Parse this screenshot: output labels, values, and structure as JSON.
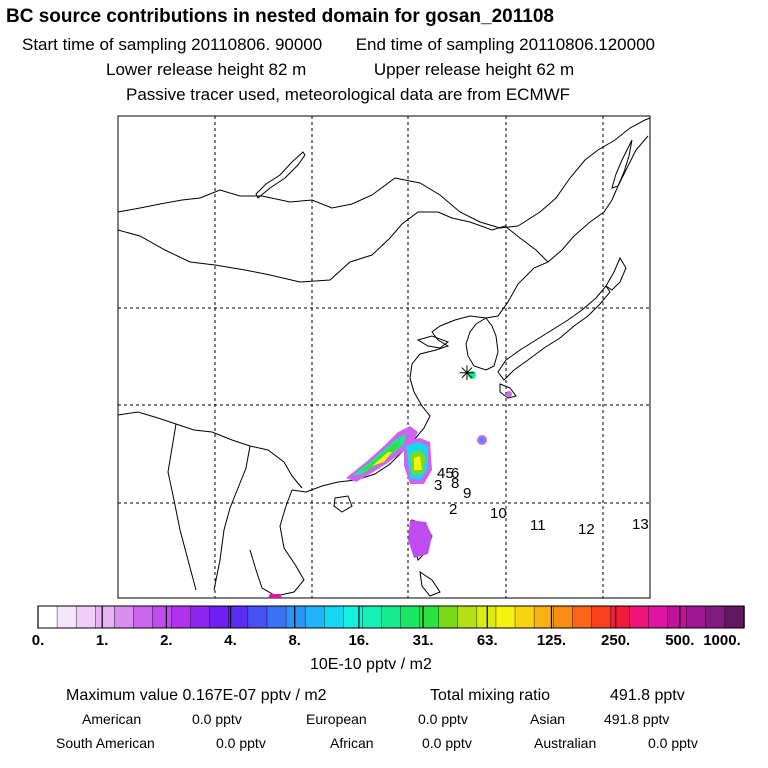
{
  "header": {
    "title": "BC  source contributions in nested domain for gosan_201108",
    "start_label": "Start time of sampling 20110806. 90000",
    "end_label": "End time of sampling 20110806.120000",
    "lower_label": "Lower release height   82 m",
    "upper_label": "Upper release height   62 m",
    "note": "Passive tracer used, meteorological data are from ECMWF"
  },
  "map": {
    "receptor_symbol": "✳",
    "trajectory_labels": [
      "45",
      "6",
      "3",
      "8",
      "9",
      "2",
      "10",
      "11",
      "12",
      "13"
    ]
  },
  "colorbar": {
    "tick_labels": [
      "0.",
      "1.",
      "2.",
      "4.",
      "8.",
      "16.",
      "31.",
      "63.",
      "125.",
      "250.",
      "500.",
      "1000."
    ],
    "units": "10E-10 pptv / m2",
    "colors": [
      "#ffffff",
      "#f7e6fb",
      "#efcdf7",
      "#e7b4f3",
      "#d98ff0",
      "#cc66ee",
      "#c04cf0",
      "#b032ee",
      "#8f26f0",
      "#6e1ff2",
      "#5a2cf4",
      "#4650f5",
      "#3a72f6",
      "#2c94f7",
      "#21b4f6",
      "#14d8f0",
      "#12f2e0",
      "#16f0b8",
      "#16ec8e",
      "#18e866",
      "#2ee23e",
      "#7ada1a",
      "#b4e014",
      "#dcec12",
      "#f6f210",
      "#f8d410",
      "#f8b012",
      "#f88c14",
      "#f86418",
      "#f8401e",
      "#f41a3c",
      "#f0147a",
      "#e014a0",
      "#c01498",
      "#a01890",
      "#801c80",
      "#601860"
    ]
  },
  "summary": {
    "max_label": "Maximum value  0.167E-07 pptv / m2",
    "total_label": "Total mixing ratio",
    "total_value": "491.8 pptv",
    "regions": [
      {
        "name": "American",
        "value": "0.0 pptv"
      },
      {
        "name": "European",
        "value": "0.0 pptv"
      },
      {
        "name": "Asian",
        "value": "491.8 pptv"
      },
      {
        "name": "South American",
        "value": "0.0 pptv"
      },
      {
        "name": "African",
        "value": "0.0 pptv"
      },
      {
        "name": "Australian",
        "value": "0.0 pptv"
      }
    ]
  }
}
